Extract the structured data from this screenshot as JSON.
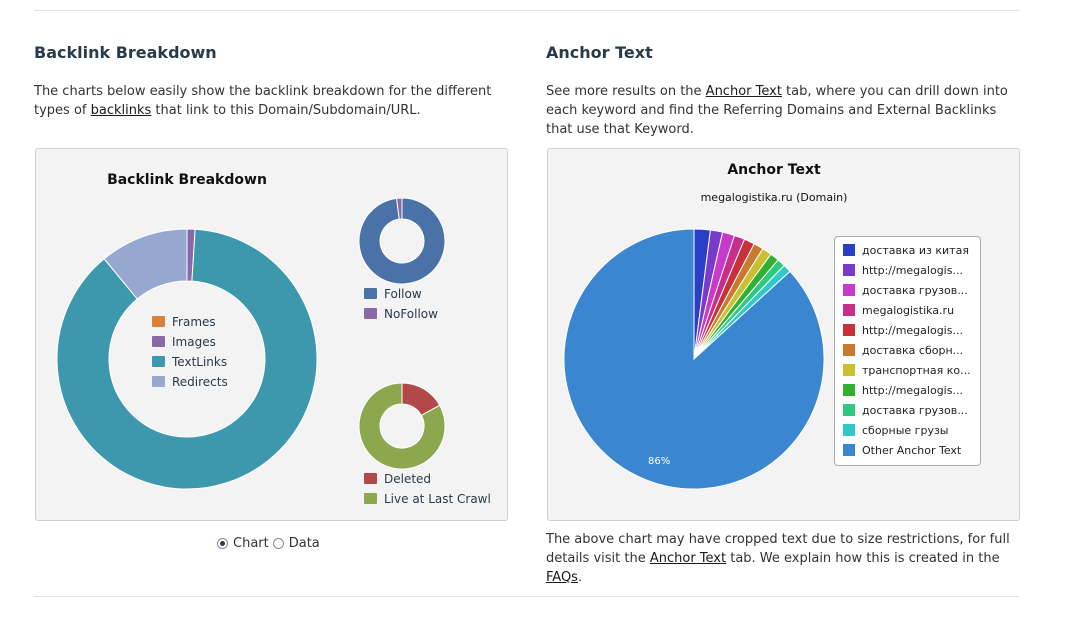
{
  "backlink": {
    "heading": "Backlink Breakdown",
    "desc_before": "The charts below easily show the backlink breakdown for the different types of ",
    "desc_link": "backlinks",
    "desc_after": " that link to this Domain/Subdomain/URL.",
    "chart_title": "Backlink Breakdown",
    "view_options": {
      "chart_label": "Chart",
      "data_label": "Data",
      "selected": "Chart"
    }
  },
  "anchor": {
    "heading": "Anchor Text",
    "desc_before": "See more results on the ",
    "desc_link": "Anchor Text",
    "desc_after": " tab, where you can drill down into each keyword and find the Referring Domains and External Backlinks that use that Keyword.",
    "note_before": "The above chart may have cropped text due to size restrictions, for full details visit the ",
    "note_link1": "Anchor Text",
    "note_mid": " tab. We explain how this is created in the ",
    "note_link2": "FAQs",
    "note_after": "."
  },
  "chart_data": [
    {
      "type": "pie",
      "title": "Backlink Breakdown",
      "labels": [
        "Frames",
        "Images",
        "TextLinks",
        "Redirects"
      ],
      "values": [
        0,
        1,
        88,
        11
      ],
      "colors": [
        "#d9823f",
        "#8a6aa6",
        "#3d98ad",
        "#97a8d0"
      ]
    },
    {
      "type": "pie",
      "labels": [
        "Follow",
        "NoFollow"
      ],
      "values": [
        98,
        2
      ],
      "colors": [
        "#4a72a6",
        "#8a6aa6"
      ]
    },
    {
      "type": "pie",
      "labels": [
        "Deleted",
        "Live at Last Crawl"
      ],
      "values": [
        17,
        83
      ],
      "colors": [
        "#b24848",
        "#8ca74e"
      ]
    },
    {
      "type": "pie",
      "title": "Anchor Text",
      "subtitle": "megalogistika.ru (Domain)",
      "labels": [
        "доставка из китая",
        "http://megalogis...",
        "доставка грузов...",
        "megalogistika.ru",
        "http://megalogis...",
        "доставка сборн...",
        "транспортная ко...",
        "http://megalogis...",
        "доставка грузов...",
        "сборные грузы",
        "Other Anchor Text"
      ],
      "values": [
        2.0,
        1.5,
        1.5,
        1.3,
        1.3,
        1.2,
        1.2,
        1.1,
        1.0,
        1.0,
        86
      ],
      "data_labels": [
        "",
        "",
        "",
        "",
        "",
        "",
        "",
        "",
        "",
        "",
        "86%"
      ],
      "colors": [
        "#2a3ec8",
        "#7a3ac8",
        "#c83ac8",
        "#c82e8a",
        "#c8303a",
        "#c87a30",
        "#c8c030",
        "#30b030",
        "#30c880",
        "#30c8c8",
        "#3a86d0"
      ]
    }
  ]
}
